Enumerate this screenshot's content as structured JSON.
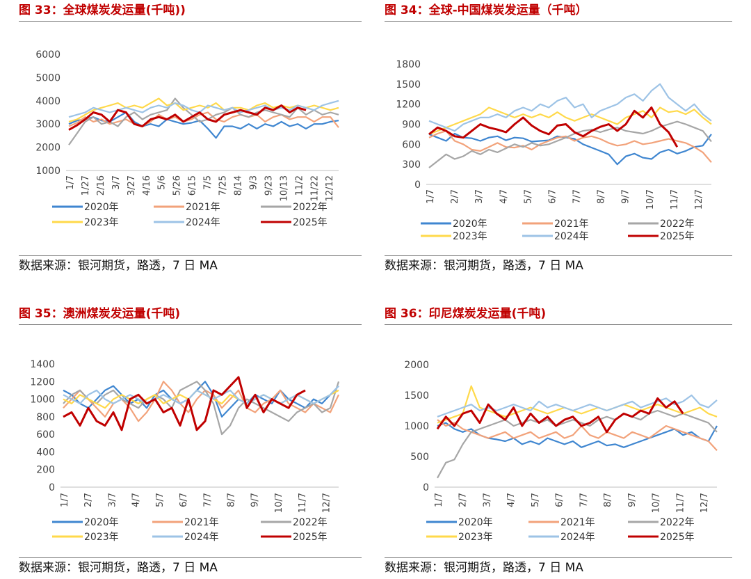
{
  "source_note": "数据来源：银河期货，路透，7 日 MA",
  "legend_series": [
    {
      "name": "2020年",
      "color": "#3f86d0"
    },
    {
      "name": "2021年",
      "color": "#f2a27a"
    },
    {
      "name": "2022年",
      "color": "#a6a6a6"
    },
    {
      "name": "2023年",
      "color": "#ffd94a"
    },
    {
      "name": "2024年",
      "color": "#9dc3e6"
    },
    {
      "name": "2025年",
      "color": "#c00000"
    }
  ],
  "chart_data": [
    {
      "id": "fig33",
      "type": "line",
      "title": "图 33：全球煤炭发运量(千吨))",
      "ylim": [
        1000,
        6000
      ],
      "yticks": [
        1000,
        2000,
        3000,
        4000,
        5000,
        6000
      ],
      "x_tick_labels": [
        "1/7",
        "1/27",
        "2/16",
        "3/7",
        "3/27",
        "4/16",
        "5/6",
        "5/26",
        "6/15",
        "7/5",
        "7/25",
        "8/14",
        "9/3",
        "9/23",
        "10/13",
        "11/2",
        "11/22",
        "12/12"
      ],
      "series": [
        {
          "name": "2020年",
          "values": [
            3000,
            3150,
            3200,
            3300,
            3150,
            3100,
            3300,
            3500,
            3100,
            2900,
            3000,
            2900,
            3200,
            3100,
            3000,
            3050,
            3150,
            2800,
            2400,
            2900,
            2900,
            2800,
            3000,
            2800,
            3000,
            2900,
            3100,
            2900,
            3000,
            2800,
            3000,
            3000,
            3100,
            3150
          ]
        },
        {
          "name": "2021年",
          "values": [
            2900,
            3050,
            3300,
            3100,
            3200,
            3000,
            3100,
            3200,
            3000,
            2900,
            3100,
            3400,
            3200,
            3300,
            3100,
            3200,
            3400,
            3500,
            3200,
            3100,
            3300,
            3400,
            3300,
            3400,
            3100,
            3300,
            3400,
            3200,
            3300,
            3300,
            3100,
            3300,
            3300,
            2850
          ]
        },
        {
          "name": "2022年",
          "values": [
            2100,
            2600,
            3100,
            3300,
            3000,
            3100,
            2900,
            3300,
            3500,
            3200,
            3400,
            3500,
            3600,
            4100,
            3700,
            3400,
            3100,
            3200,
            3400,
            3500,
            3700,
            3400,
            3300,
            3500,
            3600,
            3500,
            3400,
            3300,
            3700,
            3400,
            3600,
            3400,
            3500,
            3400
          ]
        },
        {
          "name": "2023年",
          "values": [
            3100,
            3200,
            3400,
            3600,
            3700,
            3800,
            3900,
            3700,
            3800,
            3700,
            3900,
            4100,
            3800,
            3900,
            3600,
            3700,
            3800,
            3700,
            3900,
            3600,
            3700,
            3700,
            3600,
            3800,
            3900,
            3700,
            3800,
            3700,
            3800,
            3700,
            3800,
            3700,
            3600,
            3700
          ]
        },
        {
          "name": "2024年",
          "values": [
            3300,
            3400,
            3500,
            3700,
            3600,
            3500,
            3600,
            3700,
            3600,
            3500,
            3700,
            3800,
            3700,
            3900,
            3800,
            3600,
            3500,
            3800,
            3700,
            3600,
            3700,
            3500,
            3600,
            3700,
            3800,
            3600,
            3700,
            3600,
            3800,
            3700,
            3600,
            3800,
            3900,
            4000
          ]
        },
        {
          "name": "2025年",
          "values": [
            2750,
            2950,
            3200,
            3500,
            3400,
            3100,
            3600,
            3500,
            3000,
            2900,
            3200,
            3300,
            3200,
            3400,
            3100,
            3300,
            3500,
            3200,
            3100,
            3400,
            3500,
            3600,
            3500,
            3400,
            3700,
            3600,
            3800,
            3500,
            3700,
            3600
          ]
        }
      ]
    },
    {
      "id": "fig34",
      "type": "line",
      "title": "图 34：全球-中国煤炭发运量（千吨）",
      "ylim": [
        0,
        1800
      ],
      "yticks": [
        0,
        300,
        600,
        900,
        1200,
        1500,
        1800
      ],
      "x_tick_labels": [
        "1/7",
        "2/7",
        "3/7",
        "4/7",
        "5/7",
        "6/7",
        "7/7",
        "8/7",
        "9/7",
        "10/7",
        "11/7",
        "12/7"
      ],
      "series": [
        {
          "name": "2020年",
          "values": [
            750,
            700,
            650,
            760,
            700,
            690,
            650,
            700,
            720,
            660,
            700,
            690,
            640,
            650,
            660,
            720,
            700,
            680,
            600,
            550,
            500,
            450,
            300,
            420,
            460,
            400,
            380,
            480,
            520,
            460,
            500,
            560,
            580,
            750
          ]
        },
        {
          "name": "2021年",
          "values": [
            700,
            760,
            800,
            650,
            600,
            520,
            500,
            560,
            620,
            560,
            550,
            580,
            520,
            600,
            650,
            700,
            720,
            650,
            700,
            720,
            680,
            620,
            580,
            600,
            650,
            600,
            620,
            650,
            680,
            650,
            620,
            560,
            480,
            330
          ]
        },
        {
          "name": "2022年",
          "values": [
            250,
            350,
            450,
            380,
            420,
            500,
            450,
            520,
            480,
            540,
            600,
            560,
            620,
            580,
            600,
            650,
            700,
            760,
            800,
            820,
            780,
            820,
            850,
            800,
            780,
            760,
            800,
            860,
            900,
            940,
            900,
            850,
            800,
            640
          ]
        },
        {
          "name": "2023年",
          "values": [
            750,
            800,
            850,
            900,
            950,
            1000,
            1050,
            1150,
            1100,
            1050,
            1000,
            1050,
            1000,
            1050,
            1000,
            1080,
            1000,
            950,
            1000,
            1050,
            1000,
            950,
            900,
            1000,
            1050,
            1100,
            1000,
            1150,
            1080,
            1100,
            1050,
            1120,
            1000,
            900
          ]
        },
        {
          "name": "2024年",
          "values": [
            950,
            900,
            850,
            800,
            900,
            950,
            1000,
            1000,
            1050,
            1000,
            1100,
            1150,
            1100,
            1200,
            1150,
            1250,
            1300,
            1150,
            1200,
            1000,
            1100,
            1150,
            1200,
            1300,
            1350,
            1250,
            1400,
            1500,
            1300,
            1200,
            1100,
            1200,
            1050,
            950
          ]
        },
        {
          "name": "2025年",
          "values": [
            750,
            850,
            800,
            720,
            700,
            800,
            900,
            850,
            820,
            780,
            900,
            1000,
            880,
            800,
            750,
            880,
            900,
            780,
            720,
            800,
            860,
            900,
            800,
            900,
            1100,
            1000,
            1150,
            900,
            780,
            560
          ]
        }
      ]
    },
    {
      "id": "fig35",
      "type": "line",
      "title": "图 35：澳洲煤炭发运量(千吨)",
      "ylim": [
        0,
        1400
      ],
      "yticks": [
        0,
        200,
        400,
        600,
        800,
        1000,
        1200,
        1400
      ],
      "x_tick_labels": [
        "1/7",
        "2/7",
        "3/7",
        "4/7",
        "5/7",
        "6/7",
        "7/7",
        "8/7",
        "9/7",
        "10/7",
        "11/7",
        "12/7"
      ],
      "series": [
        {
          "name": "2020年",
          "values": [
            1100,
            1050,
            950,
            900,
            1000,
            1100,
            1150,
            1050,
            950,
            1000,
            900,
            1050,
            1100,
            1000,
            950,
            1000,
            1100,
            1200,
            1050,
            800,
            900,
            1000,
            950,
            1050,
            1000,
            950,
            1100,
            1000,
            950,
            900,
            1000,
            950,
            1050,
            1150
          ]
        },
        {
          "name": "2021年",
          "values": [
            900,
            1000,
            1100,
            1000,
            900,
            800,
            950,
            1000,
            900,
            750,
            850,
            1000,
            1200,
            1100,
            950,
            850,
            1000,
            1100,
            1050,
            900,
            1000,
            1100,
            900,
            850,
            950,
            1000,
            1100,
            950,
            900,
            850,
            950,
            900,
            850,
            1050
          ]
        },
        {
          "name": "2022年",
          "values": [
            950,
            1050,
            1100,
            1000,
            950,
            1050,
            1100,
            1000,
            950,
            900,
            1000,
            1050,
            1000,
            900,
            1100,
            1150,
            1200,
            1100,
            950,
            600,
            700,
            900,
            1000,
            950,
            900,
            850,
            800,
            750,
            850,
            900,
            950,
            850,
            900,
            1200
          ]
        },
        {
          "name": "2023年",
          "values": [
            1000,
            950,
            1050,
            1000,
            950,
            900,
            1000,
            1050,
            1000,
            950,
            1000,
            1050,
            950,
            1000,
            1050,
            1000,
            1100,
            1050,
            1000,
            950,
            1050,
            1000,
            950,
            1000,
            1050,
            1000,
            950,
            1000,
            1050,
            1000,
            950,
            1000,
            1050,
            1100
          ]
        },
        {
          "name": "2024年",
          "values": [
            1050,
            1000,
            950,
            1050,
            1100,
            1000,
            950,
            1000,
            1050,
            1000,
            950,
            1000,
            1050,
            1000,
            950,
            1000,
            1100,
            1050,
            1000,
            1050,
            1100,
            1000,
            950,
            1000,
            1050,
            1000,
            950,
            1000,
            1050,
            1000,
            950,
            1000,
            1050,
            1150
          ]
        },
        {
          "name": "2025年",
          "values": [
            800,
            850,
            700,
            900,
            750,
            700,
            850,
            650,
            1000,
            1050,
            950,
            1000,
            850,
            900,
            700,
            1000,
            650,
            750,
            1100,
            1050,
            1150,
            1250,
            900,
            1050,
            850,
            1000,
            950,
            900,
            1050,
            1100
          ]
        }
      ]
    },
    {
      "id": "fig36",
      "type": "line",
      "title": "图 36：印尼煤炭发运量(千吨)",
      "ylim": [
        0,
        2000
      ],
      "yticks": [
        0,
        500,
        1000,
        1500,
        2000
      ],
      "x_tick_labels": [
        "1/7",
        "2/7",
        "3/7",
        "4/7",
        "5/7",
        "6/7",
        "7/7",
        "8/7",
        "9/7",
        "10/7",
        "11/7",
        "12/7"
      ],
      "series": [
        {
          "name": "2020年",
          "values": [
            1000,
            1050,
            950,
            900,
            950,
            850,
            800,
            780,
            750,
            800,
            700,
            750,
            700,
            800,
            750,
            700,
            750,
            650,
            700,
            750,
            680,
            700,
            650,
            700,
            750,
            800,
            850,
            900,
            950,
            850,
            900,
            800,
            750,
            1000
          ]
        },
        {
          "name": "2021年",
          "values": [
            1100,
            1000,
            1050,
            950,
            900,
            850,
            800,
            850,
            900,
            800,
            850,
            900,
            800,
            850,
            900,
            800,
            850,
            1000,
            850,
            800,
            900,
            850,
            800,
            900,
            850,
            800,
            900,
            1000,
            950,
            900,
            850,
            800,
            750,
            600
          ]
        },
        {
          "name": "2022年",
          "values": [
            150,
            400,
            450,
            700,
            900,
            950,
            1000,
            1050,
            1100,
            1000,
            1050,
            1100,
            1050,
            1100,
            1000,
            1050,
            1100,
            1050,
            1000,
            1100,
            1150,
            1100,
            1200,
            1150,
            1100,
            1200,
            1250,
            1200,
            1150,
            1200,
            1150,
            1100,
            1050,
            900
          ]
        },
        {
          "name": "2023年",
          "values": [
            1050,
            1100,
            1150,
            1200,
            1650,
            1300,
            1250,
            1200,
            1150,
            1200,
            1250,
            1300,
            1250,
            1200,
            1250,
            1300,
            1250,
            1200,
            1250,
            1300,
            1250,
            1300,
            1350,
            1300,
            1250,
            1300,
            1350,
            1300,
            1250,
            1200,
            1250,
            1300,
            1200,
            1150
          ]
        },
        {
          "name": "2024年",
          "values": [
            1150,
            1200,
            1250,
            1300,
            1350,
            1250,
            1300,
            1250,
            1300,
            1350,
            1300,
            1250,
            1400,
            1300,
            1350,
            1300,
            1250,
            1300,
            1350,
            1300,
            1250,
            1300,
            1350,
            1400,
            1300,
            1350,
            1400,
            1450,
            1350,
            1400,
            1500,
            1350,
            1300,
            1420
          ]
        },
        {
          "name": "2025年",
          "values": [
            950,
            1150,
            1000,
            1200,
            1250,
            1050,
            1350,
            1200,
            1100,
            1300,
            1000,
            1200,
            1050,
            1150,
            1000,
            1100,
            1150,
            1000,
            1050,
            1150,
            900,
            1100,
            1200,
            1150,
            1250,
            1200,
            1450,
            1300,
            1400,
            1200
          ]
        }
      ]
    }
  ]
}
